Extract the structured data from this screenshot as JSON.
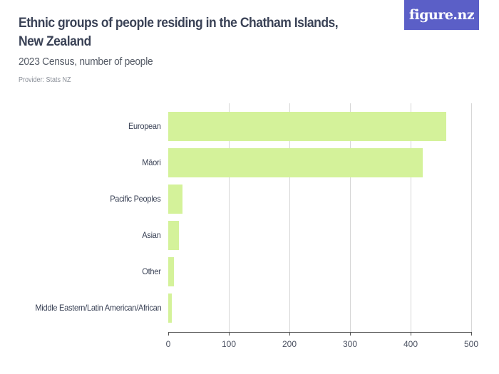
{
  "header": {
    "title": "Ethnic groups of people residing in the Chatham Islands, New Zealand",
    "subtitle": "2023 Census, number of people",
    "provider": "Provider: Stats NZ",
    "logo": "figure.nz"
  },
  "colors": {
    "bar": "#d4f29a",
    "logo_bg": "#5b5fc7",
    "title": "#3a4256"
  },
  "chart_data": {
    "type": "bar",
    "orientation": "horizontal",
    "title": "Ethnic groups of people residing in the Chatham Islands, New Zealand",
    "subtitle": "2023 Census, number of people",
    "categories": [
      "European",
      "Māori",
      "Pacific Peoples",
      "Asian",
      "Other",
      "Middle Eastern/Latin American/African"
    ],
    "values": [
      459,
      420,
      24,
      18,
      9,
      6
    ],
    "xlabel": "",
    "ylabel": "",
    "xlim": [
      0,
      500
    ],
    "xticks": [
      "0",
      "100",
      "200",
      "300",
      "400",
      "500"
    ],
    "grid": true,
    "legend": null
  }
}
